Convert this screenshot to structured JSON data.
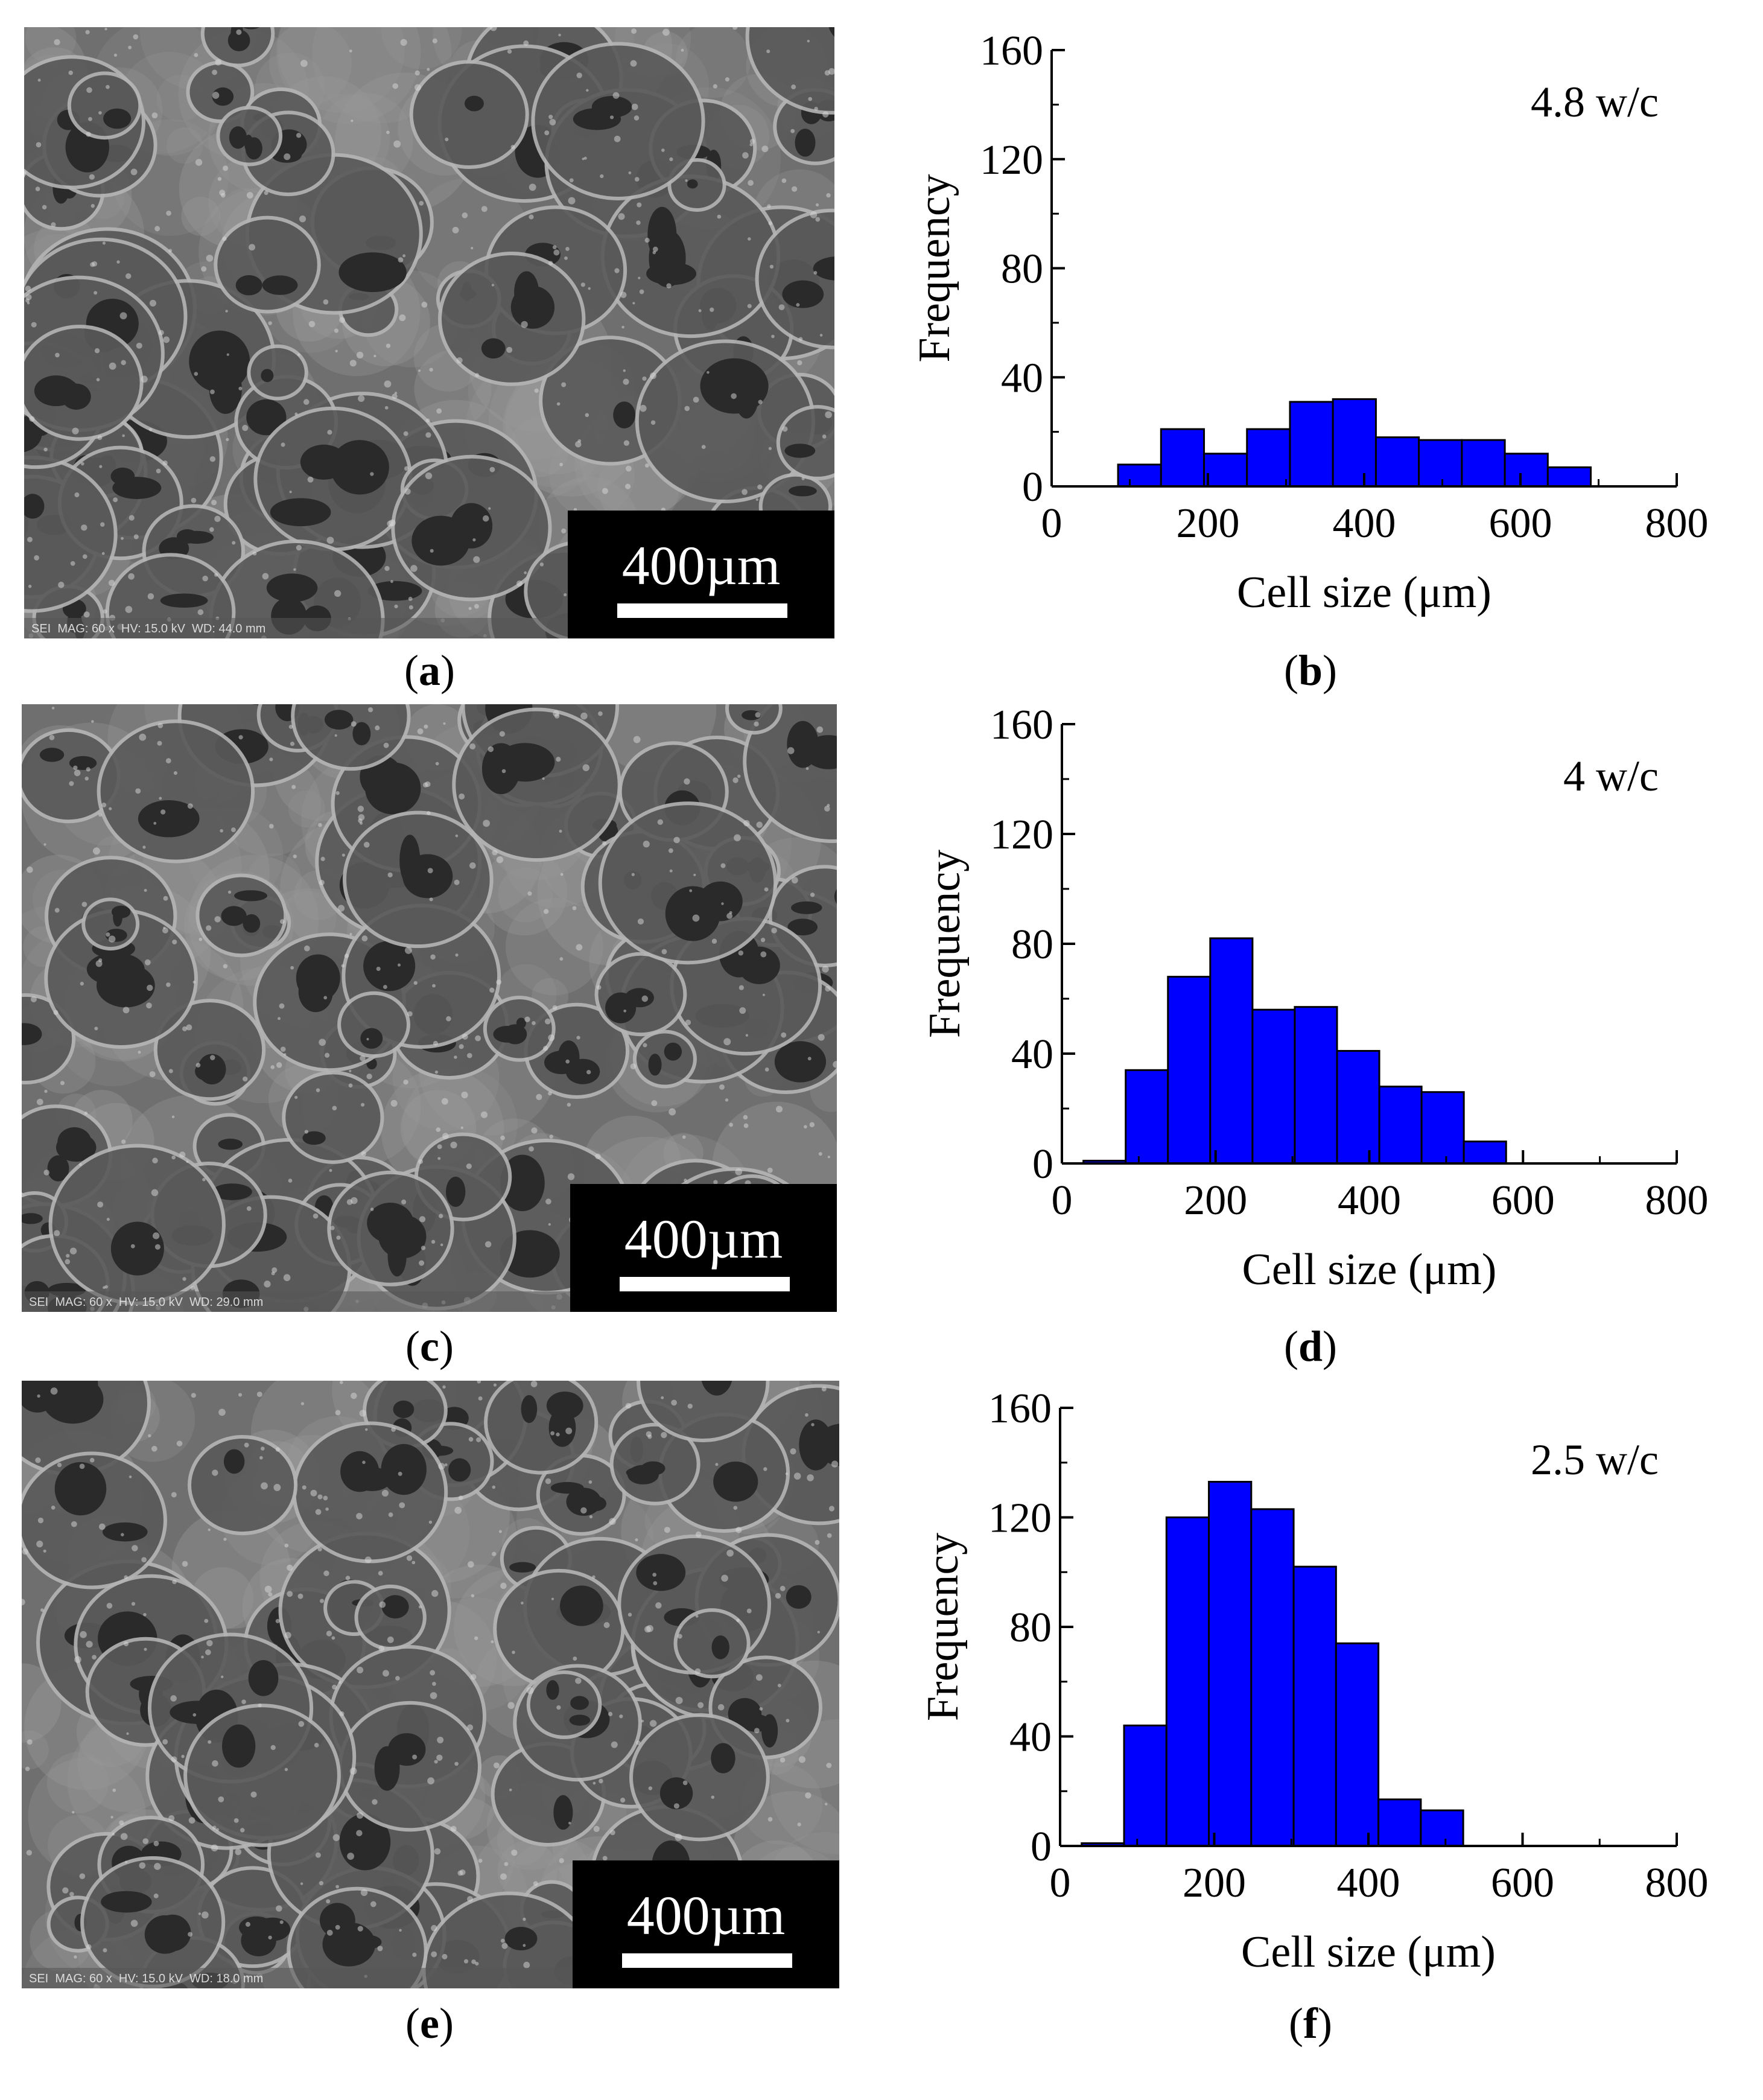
{
  "panels": {
    "a": {
      "caption_label": "a",
      "scale_bar": "400µm",
      "info": "SEI  MAG: 60 x  HV: 15.0 kV  WD: 44.0 mm"
    },
    "c": {
      "caption_label": "c",
      "scale_bar": "400µm",
      "info": "SEI  MAG: 60 x  HV: 15.0 kV  WD: 29.0 mm"
    },
    "e": {
      "caption_label": "e",
      "scale_bar": "400µm",
      "info": "SEI  MAG: 60 x  HV: 15.0 kV  WD: 18.0 mm"
    },
    "b": {
      "caption_label": "b"
    },
    "d": {
      "caption_label": "d"
    },
    "f": {
      "caption_label": "f"
    }
  },
  "colors": {
    "bar_fill": "#0000ff",
    "bar_edge": "#000000",
    "sem_base": "#6e6e6e"
  },
  "chart_data": [
    {
      "type": "bar",
      "panel": "b",
      "annotation": "4.8 w/c",
      "xlabel": "Cell size (μm)",
      "ylabel": "Frequency",
      "xlim": [
        0,
        800
      ],
      "ylim": [
        0,
        160
      ],
      "xticks": [
        "0",
        "200",
        "400",
        "600",
        "800"
      ],
      "yticks": [
        "0",
        "40",
        "80",
        "120",
        "160"
      ],
      "bin_width": 55,
      "bins": [
        {
          "x0": 85,
          "value": 8
        },
        {
          "x0": 140,
          "value": 21
        },
        {
          "x0": 195,
          "value": 12
        },
        {
          "x0": 250,
          "value": 21
        },
        {
          "x0": 305,
          "value": 31
        },
        {
          "x0": 360,
          "value": 32
        },
        {
          "x0": 415,
          "value": 18
        },
        {
          "x0": 470,
          "value": 17
        },
        {
          "x0": 525,
          "value": 17
        },
        {
          "x0": 580,
          "value": 12
        },
        {
          "x0": 635,
          "value": 7
        }
      ]
    },
    {
      "type": "bar",
      "panel": "d",
      "annotation": "4 w/c",
      "xlabel": "Cell size (μm)",
      "ylabel": "Frequency",
      "xlim": [
        0,
        800
      ],
      "ylim": [
        0,
        160
      ],
      "xticks": [
        "0",
        "200",
        "400",
        "600",
        "800"
      ],
      "yticks": [
        "0",
        "40",
        "80",
        "120",
        "160"
      ],
      "bin_width": 55,
      "bins": [
        {
          "x0": 28,
          "value": 1
        },
        {
          "x0": 83,
          "value": 34
        },
        {
          "x0": 138,
          "value": 68
        },
        {
          "x0": 193,
          "value": 82
        },
        {
          "x0": 248,
          "value": 56
        },
        {
          "x0": 303,
          "value": 57
        },
        {
          "x0": 358,
          "value": 41
        },
        {
          "x0": 413,
          "value": 28
        },
        {
          "x0": 468,
          "value": 26
        },
        {
          "x0": 523,
          "value": 8
        }
      ]
    },
    {
      "type": "bar",
      "panel": "f",
      "annotation": "2.5 w/c",
      "xlabel": "Cell size (μm)",
      "ylabel": "Frequency",
      "xlim": [
        0,
        800
      ],
      "ylim": [
        0,
        160
      ],
      "xticks": [
        "0",
        "200",
        "400",
        "600",
        "800"
      ],
      "yticks": [
        "0",
        "40",
        "80",
        "120",
        "160"
      ],
      "bin_width": 55,
      "bins": [
        {
          "x0": 28,
          "value": 1
        },
        {
          "x0": 83,
          "value": 44
        },
        {
          "x0": 138,
          "value": 120
        },
        {
          "x0": 193,
          "value": 133
        },
        {
          "x0": 248,
          "value": 123
        },
        {
          "x0": 303,
          "value": 102
        },
        {
          "x0": 358,
          "value": 74
        },
        {
          "x0": 413,
          "value": 17
        },
        {
          "x0": 468,
          "value": 13
        }
      ]
    }
  ]
}
